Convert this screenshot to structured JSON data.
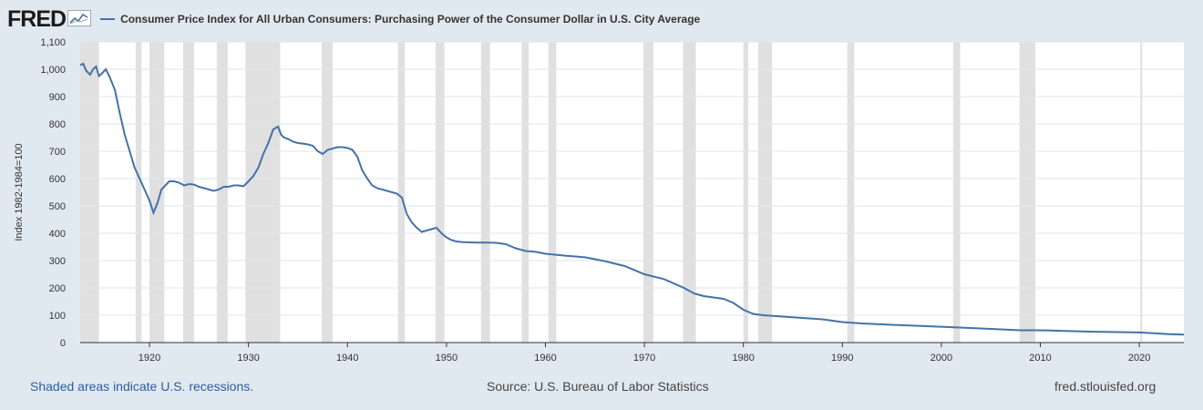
{
  "header": {
    "logo_text": "FRED",
    "logo_icon": "trend-chart-icon"
  },
  "chart_data": {
    "type": "line",
    "title": "Consumer Price Index for All Urban Consumers: Purchasing Power of the Consumer Dollar in U.S. City Average",
    "ylabel": "Index 1982-1984=100",
    "xlabel": "",
    "xlim": [
      1913,
      2024.5
    ],
    "ylim": [
      0,
      1100
    ],
    "x_ticks": [
      1920,
      1930,
      1940,
      1950,
      1960,
      1970,
      1980,
      1990,
      2000,
      2010,
      2020
    ],
    "y_ticks": [
      {
        "value": 0,
        "label": "0"
      },
      {
        "value": 100,
        "label": "100"
      },
      {
        "value": 200,
        "label": "200"
      },
      {
        "value": 300,
        "label": "300"
      },
      {
        "value": 400,
        "label": "400"
      },
      {
        "value": 500,
        "label": "500"
      },
      {
        "value": 600,
        "label": "600"
      },
      {
        "value": 700,
        "label": "700"
      },
      {
        "value": 800,
        "label": "800"
      },
      {
        "value": 900,
        "label": "900"
      },
      {
        "value": 1000,
        "label": "1,000"
      },
      {
        "value": 1100,
        "label": "1,100"
      }
    ],
    "grid": true,
    "legend_position": "top-left",
    "series_color": "#4572a7",
    "recession_color": "#e0e0e0",
    "recessions": [
      [
        1913.0,
        1914.9
      ],
      [
        1918.6,
        1919.2
      ],
      [
        1920.0,
        1921.5
      ],
      [
        1923.4,
        1924.5
      ],
      [
        1926.8,
        1927.9
      ],
      [
        1929.7,
        1933.2
      ],
      [
        1937.4,
        1938.5
      ],
      [
        1945.1,
        1945.8
      ],
      [
        1948.9,
        1949.8
      ],
      [
        1953.5,
        1954.4
      ],
      [
        1957.6,
        1958.3
      ],
      [
        1960.3,
        1961.1
      ],
      [
        1969.9,
        1970.9
      ],
      [
        1973.9,
        1975.2
      ],
      [
        1980.0,
        1980.5
      ],
      [
        1981.5,
        1982.9
      ],
      [
        1990.5,
        1991.2
      ],
      [
        2001.2,
        2001.9
      ],
      [
        2007.9,
        2009.5
      ],
      [
        2020.1,
        2020.3
      ]
    ],
    "series": [
      {
        "x": [
          1913,
          1913.3,
          1913.6,
          1914.0,
          1914.3,
          1914.6,
          1914.9,
          1915.2,
          1915.6,
          1916.0,
          1916.5,
          1917.0,
          1917.5,
          1918.0,
          1918.5,
          1919.0,
          1919.5,
          1920.0,
          1920.4,
          1920.8,
          1921.2,
          1921.6,
          1922.0,
          1922.5,
          1923.0,
          1923.5,
          1924.0,
          1924.5,
          1925.0,
          1925.5,
          1926.0,
          1926.5,
          1927.0,
          1927.5,
          1928.0,
          1928.5,
          1929.0,
          1929.5,
          1930.0,
          1930.5,
          1931.0,
          1931.5,
          1932.0,
          1932.5,
          1933.0,
          1933.3,
          1933.6,
          1934.0,
          1934.5,
          1935.0,
          1935.5,
          1936.0,
          1936.5,
          1937.0,
          1937.5,
          1938.0,
          1938.5,
          1939.0,
          1939.5,
          1940.0,
          1940.5,
          1941.0,
          1941.5,
          1942.0,
          1942.5,
          1943.0,
          1944.0,
          1945.0,
          1945.5,
          1946.0,
          1946.5,
          1947.0,
          1947.5,
          1948.0,
          1948.5,
          1949.0,
          1949.5,
          1950.0,
          1950.5,
          1951.0,
          1951.5,
          1952.0,
          1953.0,
          1954.0,
          1955.0,
          1956.0,
          1957.0,
          1958.0,
          1959.0,
          1960.0,
          1962.0,
          1964.0,
          1966.0,
          1968.0,
          1970.0,
          1972.0,
          1974.0,
          1975.0,
          1976.0,
          1978.0,
          1979.0,
          1980.0,
          1981.0,
          1982.0,
          1984.0,
          1986.0,
          1988.0,
          1990.0,
          1992.0,
          1995.0,
          2000.0,
          2005.0,
          2008.0,
          2010.0,
          2015.0,
          2020.0,
          2021.0,
          2022.0,
          2023.0,
          2024.5
        ],
        "y": [
          1015,
          1020,
          995,
          980,
          1000,
          1010,
          975,
          985,
          1000,
          970,
          925,
          840,
          760,
          700,
          640,
          600,
          560,
          520,
          475,
          510,
          560,
          575,
          590,
          590,
          585,
          575,
          580,
          578,
          570,
          565,
          560,
          555,
          560,
          570,
          570,
          575,
          575,
          572,
          590,
          610,
          640,
          690,
          730,
          780,
          790,
          760,
          750,
          745,
          735,
          730,
          728,
          725,
          720,
          700,
          690,
          705,
          710,
          715,
          715,
          712,
          705,
          680,
          630,
          600,
          575,
          565,
          555,
          545,
          530,
          470,
          440,
          420,
          405,
          410,
          415,
          420,
          400,
          385,
          375,
          370,
          368,
          367,
          366,
          366,
          365,
          360,
          345,
          335,
          332,
          325,
          318,
          312,
          298,
          280,
          250,
          232,
          200,
          180,
          170,
          160,
          145,
          120,
          105,
          100,
          95,
          90,
          85,
          75,
          70,
          65,
          58,
          50,
          45,
          45,
          40,
          37,
          35,
          33,
          31,
          29
        ]
      }
    ]
  },
  "footer": {
    "recession_note": "Shaded areas indicate U.S. recessions.",
    "source": "Source: U.S. Bureau of Labor Statistics",
    "site": "fred.stlouisfed.org"
  }
}
